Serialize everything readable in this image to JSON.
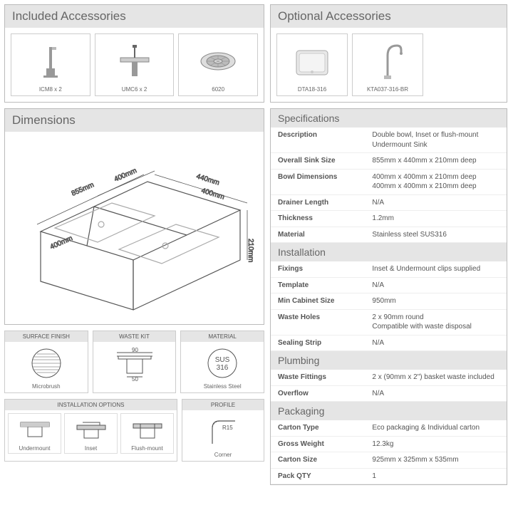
{
  "included": {
    "title": "Included Accessories",
    "items": [
      {
        "label": "ICM8 x 2"
      },
      {
        "label": "UMC6 x 2"
      },
      {
        "label": "6020"
      }
    ]
  },
  "optional": {
    "title": "Optional Accessories",
    "items": [
      {
        "label": "DTA18-316"
      },
      {
        "label": "KTA037-316-BR"
      }
    ]
  },
  "dimensions": {
    "title": "Dimensions",
    "labels": {
      "d855": "855mm",
      "d400a": "400mm",
      "d400b": "400mm",
      "d440": "440mm",
      "d400c": "400mm",
      "d210": "210mm"
    }
  },
  "features": {
    "surface": {
      "head": "SURFACE FINISH",
      "label": "Microbrush"
    },
    "waste": {
      "head": "WASTE KIT",
      "d90": "90",
      "d50": "50"
    },
    "material": {
      "head": "MATERIAL",
      "sus": "SUS\n316",
      "label": "Stainless Steel"
    },
    "install": {
      "head": "INSTALLATION OPTIONS",
      "opts": [
        "Undermount",
        "Inset",
        "Flush-mount"
      ]
    },
    "profile": {
      "head": "PROFILE",
      "r": "R15",
      "label": "Corner"
    }
  },
  "specs": {
    "sections": [
      {
        "title": "Specifications",
        "rows": [
          [
            "Description",
            "Double bowl, Inset or flush-mount Undermount Sink"
          ],
          [
            "Overall Sink Size",
            "855mm x 440mm x 210mm deep"
          ],
          [
            "Bowl Dimensions",
            "400mm x 400mm x 210mm deep\n400mm x 400mm x 210mm deep"
          ],
          [
            "Drainer Length",
            "N/A"
          ],
          [
            "Thickness",
            "1.2mm"
          ],
          [
            "Material",
            "Stainless steel SUS316"
          ]
        ]
      },
      {
        "title": "Installation",
        "rows": [
          [
            "Fixings",
            "Inset & Undermount clips supplied"
          ],
          [
            "Template",
            "N/A"
          ],
          [
            "Min Cabinet Size",
            "950mm"
          ],
          [
            "Waste Holes",
            "2 x 90mm round\nCompatible with waste disposal"
          ],
          [
            "Sealing Strip",
            "N/A"
          ]
        ]
      },
      {
        "title": "Plumbing",
        "rows": [
          [
            "Waste Fittings",
            "2 x (90mm x 2\") basket waste included"
          ],
          [
            "Overflow",
            "N/A"
          ]
        ]
      },
      {
        "title": "Packaging",
        "rows": [
          [
            "Carton Type",
            "Eco packaging & Individual carton"
          ],
          [
            "Gross Weight",
            "12.3kg"
          ],
          [
            "Carton Size",
            "925mm x 325mm x 535mm"
          ],
          [
            "Pack QTY",
            "1"
          ]
        ]
      }
    ]
  },
  "colors": {
    "border": "#bbb",
    "headbg": "#e5e5e5",
    "text": "#555"
  }
}
